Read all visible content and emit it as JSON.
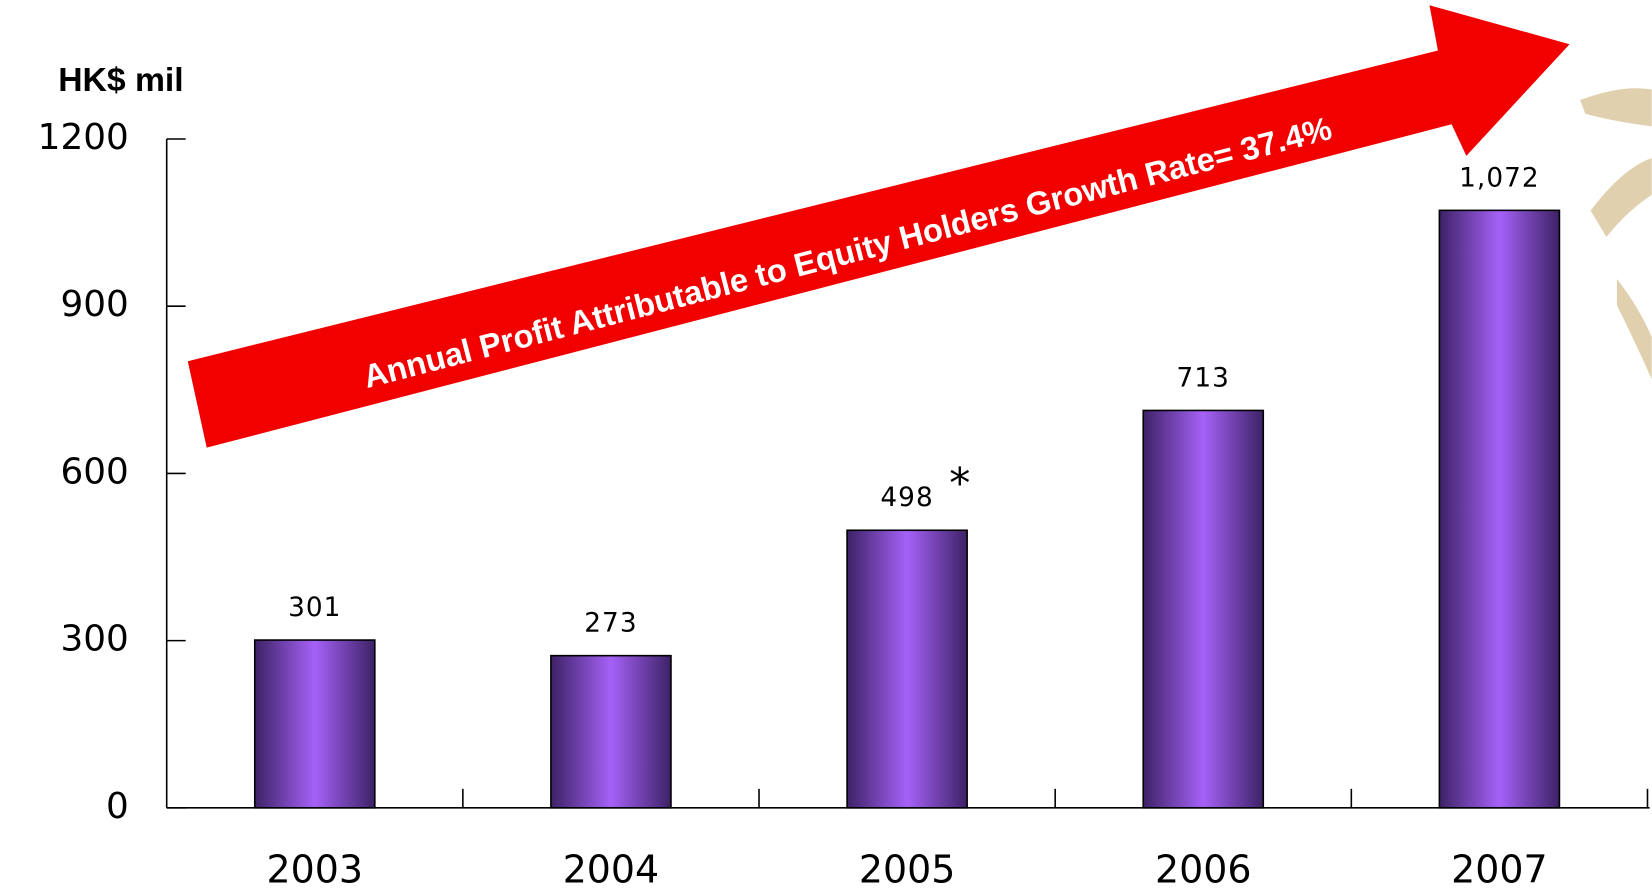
{
  "chart_data": {
    "type": "bar",
    "y_unit_label": "HK$ mil",
    "banner": "Annual Profit Attributable to Equity Holders  Growth Rate= 37.4%",
    "categories": [
      "2003",
      "2004",
      "2005",
      "2006",
      "2007"
    ],
    "values": [
      301,
      273,
      498,
      713,
      1072
    ],
    "value_labels": [
      "301",
      "273",
      "498",
      "713",
      "1,072"
    ],
    "annotation": {
      "text": "*",
      "category": "2005"
    },
    "color": "#a661f8",
    "ylim": [
      0,
      1200
    ],
    "yticks": [
      0,
      300,
      600,
      900,
      1200
    ]
  }
}
